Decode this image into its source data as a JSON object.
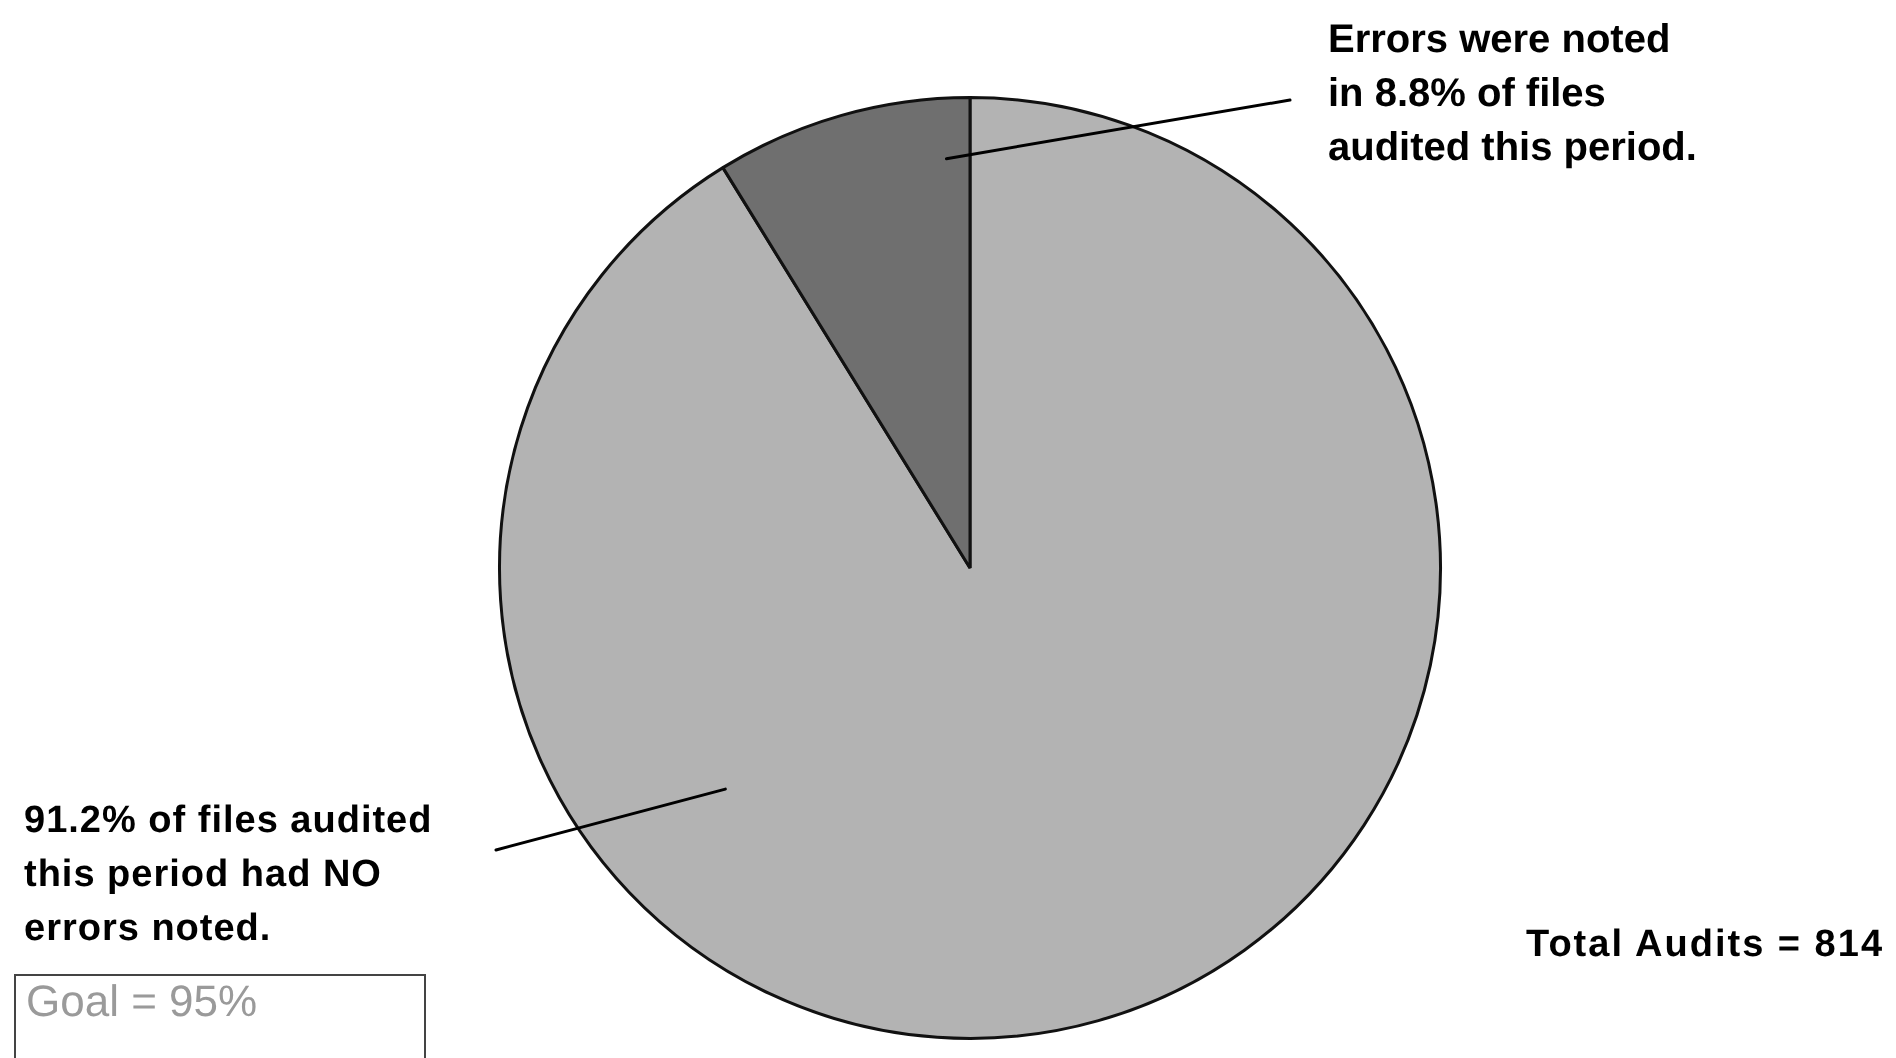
{
  "chart_data": {
    "type": "pie",
    "categories": [
      "91.2% of files audited this period had NO errors noted.",
      "Errors were noted in 8.8% of files audited this period."
    ],
    "values": [
      91.2,
      8.8
    ],
    "colors": [
      "#b3b3b3",
      "#6f6f6f"
    ],
    "annotations": [
      "Total Audits = 814",
      "Goal = 95%"
    ]
  }
}
